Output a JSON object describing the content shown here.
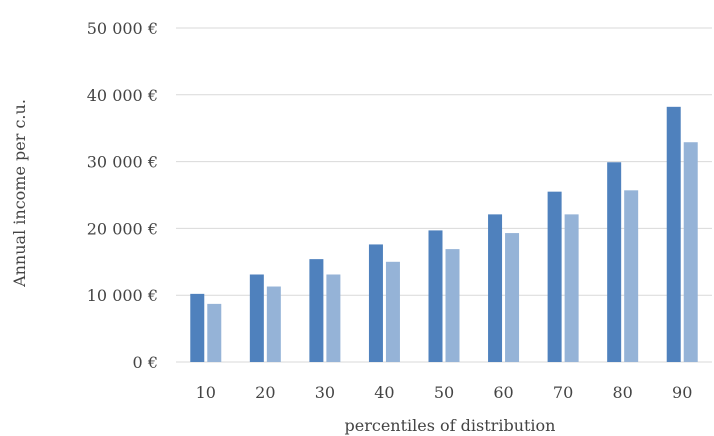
{
  "chart_data": {
    "type": "bar",
    "xlabel": "percentiles of distribution",
    "ylabel": "Annual income per c.u.",
    "categories": [
      "10",
      "20",
      "30",
      "40",
      "50",
      "60",
      "70",
      "80",
      "90"
    ],
    "series": [
      {
        "values": [
          10200,
          13100,
          15400,
          17600,
          19700,
          22100,
          25500,
          29900,
          38200
        ],
        "color": "#4f81bd"
      },
      {
        "values": [
          8700,
          11300,
          13100,
          15000,
          16900,
          19300,
          22100,
          25700,
          32900
        ],
        "color": "#95b3d7"
      }
    ],
    "ylim": [
      0,
      50000
    ],
    "yticks": [
      {
        "value": 0,
        "label": "0 €"
      },
      {
        "value": 10000,
        "label": "10 000 €"
      },
      {
        "value": 20000,
        "label": "20 000 €"
      },
      {
        "value": 30000,
        "label": "30 000 €"
      },
      {
        "value": 40000,
        "label": "40 000 €"
      },
      {
        "value": 50000,
        "label": "50 000 €"
      }
    ],
    "grid": true,
    "legend": "none"
  }
}
